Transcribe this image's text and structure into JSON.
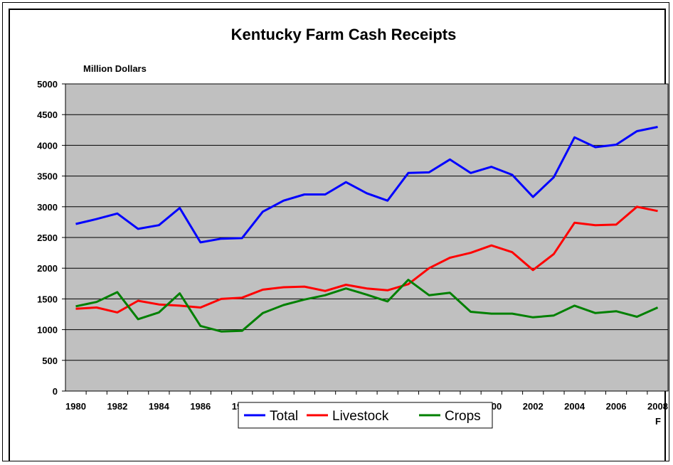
{
  "chart_data": {
    "type": "line",
    "title": "Kentucky Farm Cash Receipts",
    "ylabel": "Million Dollars",
    "xlabel": "",
    "ylim": [
      0,
      5000
    ],
    "yticks": [
      "0",
      "500",
      "1000",
      "1500",
      "2000",
      "2500",
      "3000",
      "3500",
      "4000",
      "4500",
      "5000"
    ],
    "xticks": [
      "1980",
      "1982",
      "1984",
      "1986",
      "1988",
      "1990",
      "1992",
      "1994",
      "1996",
      "1998",
      "2000",
      "2002",
      "2004",
      "2006",
      "2008"
    ],
    "x_note": "F",
    "x": [
      1980,
      1981,
      1982,
      1983,
      1984,
      1985,
      1986,
      1987,
      1988,
      1989,
      1990,
      1991,
      1992,
      1993,
      1994,
      1995,
      1996,
      1997,
      1998,
      1999,
      2000,
      2001,
      2002,
      2003,
      2004,
      2005,
      2006,
      2007,
      2008
    ],
    "grid": true,
    "plot_background": "#c0c0c0",
    "legend_position": "bottom",
    "series": [
      {
        "name": "Total",
        "color": "#0000ff",
        "values": [
          2720,
          2800,
          2890,
          2640,
          2700,
          2980,
          2420,
          2480,
          2490,
          2920,
          3100,
          3200,
          3200,
          3400,
          3220,
          3100,
          3550,
          3560,
          3770,
          3550,
          3650,
          3520,
          3160,
          3480,
          4130,
          3970,
          4010,
          4230,
          4300
        ]
      },
      {
        "name": "Livestock",
        "color": "#ff0000",
        "values": [
          1340,
          1360,
          1280,
          1470,
          1410,
          1390,
          1360,
          1500,
          1520,
          1650,
          1690,
          1700,
          1630,
          1730,
          1670,
          1640,
          1740,
          2000,
          2170,
          2250,
          2370,
          2260,
          1970,
          2230,
          2740,
          2700,
          2710,
          3000,
          2930
        ]
      },
      {
        "name": "Crops",
        "color": "#008000",
        "values": [
          1380,
          1450,
          1610,
          1170,
          1280,
          1590,
          1060,
          970,
          980,
          1270,
          1400,
          1490,
          1560,
          1670,
          1570,
          1460,
          1810,
          1560,
          1600,
          1290,
          1260,
          1260,
          1200,
          1230,
          1390,
          1270,
          1300,
          1210,
          1360
        ]
      }
    ]
  }
}
